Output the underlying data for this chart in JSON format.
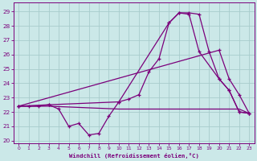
{
  "xlabel": "Windchill (Refroidissement éolien,°C)",
  "bg_color": "#cbe8e8",
  "grid_color": "#a8cccc",
  "line_color": "#7b007b",
  "xlim": [
    -0.5,
    23.5
  ],
  "ylim": [
    19.8,
    29.6
  ],
  "xticks": [
    0,
    1,
    2,
    3,
    4,
    5,
    6,
    7,
    8,
    9,
    10,
    11,
    12,
    13,
    14,
    15,
    16,
    17,
    18,
    19,
    20,
    21,
    22,
    23
  ],
  "yticks": [
    20,
    21,
    22,
    23,
    24,
    25,
    26,
    27,
    28,
    29
  ],
  "series1_x": [
    0,
    1,
    2,
    3,
    4,
    5,
    6,
    7,
    8,
    9,
    10,
    11,
    12,
    13,
    14,
    15,
    16,
    17,
    18,
    19,
    20,
    21,
    22,
    23
  ],
  "series1_y": [
    22.4,
    22.4,
    22.4,
    22.5,
    22.2,
    21.0,
    21.2,
    20.4,
    20.5,
    21.7,
    22.7,
    22.9,
    23.2,
    24.8,
    25.7,
    28.2,
    28.9,
    28.9,
    28.8,
    26.2,
    24.3,
    23.5,
    22.0,
    21.9
  ],
  "series2_x": [
    0,
    3,
    10,
    15,
    16,
    17,
    18,
    20,
    21,
    22,
    23
  ],
  "series2_y": [
    22.4,
    22.5,
    22.7,
    28.2,
    28.9,
    28.8,
    26.2,
    24.3,
    23.5,
    22.0,
    21.9
  ],
  "series3_x": [
    0,
    20,
    21,
    22,
    23
  ],
  "series3_y": [
    22.4,
    26.3,
    24.3,
    23.2,
    21.9
  ],
  "series4_x": [
    0,
    1,
    2,
    3,
    10,
    18,
    19,
    20,
    21,
    22,
    23
  ],
  "series4_y": [
    22.4,
    22.4,
    22.4,
    22.4,
    22.2,
    22.2,
    22.2,
    22.2,
    22.2,
    22.2,
    21.9
  ]
}
